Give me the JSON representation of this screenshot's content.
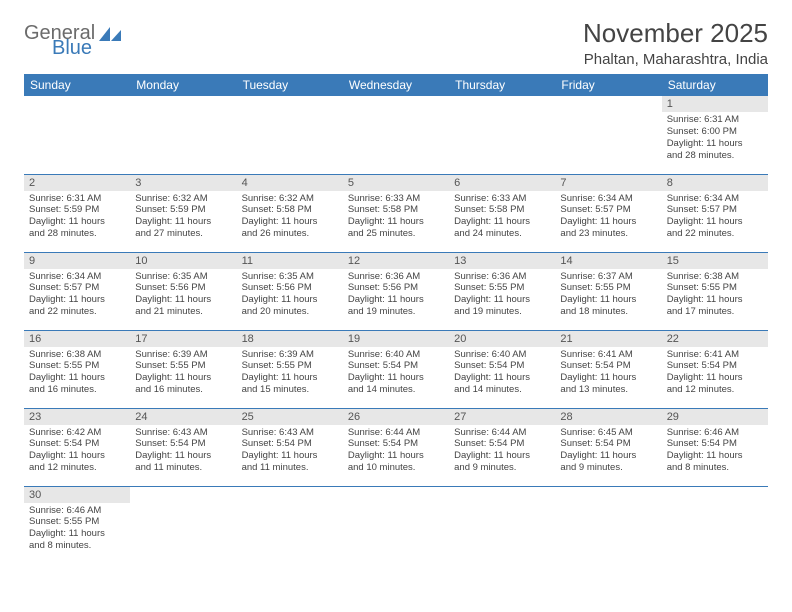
{
  "logo": {
    "general": "General",
    "blue": "Blue"
  },
  "header": {
    "month_title": "November 2025",
    "location": "Phaltan, Maharashtra, India"
  },
  "colors": {
    "header_bg": "#3a7ab8",
    "header_text": "#ffffff",
    "daynum_bg": "#e7e7e7",
    "border": "#3a7ab8",
    "body_text": "#444444"
  },
  "weekdays": [
    "Sunday",
    "Monday",
    "Tuesday",
    "Wednesday",
    "Thursday",
    "Friday",
    "Saturday"
  ],
  "weeks": [
    [
      null,
      null,
      null,
      null,
      null,
      null,
      {
        "d": "1",
        "sr": "Sunrise: 6:31 AM",
        "ss": "Sunset: 6:00 PM",
        "dl1": "Daylight: 11 hours",
        "dl2": "and 28 minutes."
      }
    ],
    [
      {
        "d": "2",
        "sr": "Sunrise: 6:31 AM",
        "ss": "Sunset: 5:59 PM",
        "dl1": "Daylight: 11 hours",
        "dl2": "and 28 minutes."
      },
      {
        "d": "3",
        "sr": "Sunrise: 6:32 AM",
        "ss": "Sunset: 5:59 PM",
        "dl1": "Daylight: 11 hours",
        "dl2": "and 27 minutes."
      },
      {
        "d": "4",
        "sr": "Sunrise: 6:32 AM",
        "ss": "Sunset: 5:58 PM",
        "dl1": "Daylight: 11 hours",
        "dl2": "and 26 minutes."
      },
      {
        "d": "5",
        "sr": "Sunrise: 6:33 AM",
        "ss": "Sunset: 5:58 PM",
        "dl1": "Daylight: 11 hours",
        "dl2": "and 25 minutes."
      },
      {
        "d": "6",
        "sr": "Sunrise: 6:33 AM",
        "ss": "Sunset: 5:58 PM",
        "dl1": "Daylight: 11 hours",
        "dl2": "and 24 minutes."
      },
      {
        "d": "7",
        "sr": "Sunrise: 6:34 AM",
        "ss": "Sunset: 5:57 PM",
        "dl1": "Daylight: 11 hours",
        "dl2": "and 23 minutes."
      },
      {
        "d": "8",
        "sr": "Sunrise: 6:34 AM",
        "ss": "Sunset: 5:57 PM",
        "dl1": "Daylight: 11 hours",
        "dl2": "and 22 minutes."
      }
    ],
    [
      {
        "d": "9",
        "sr": "Sunrise: 6:34 AM",
        "ss": "Sunset: 5:57 PM",
        "dl1": "Daylight: 11 hours",
        "dl2": "and 22 minutes."
      },
      {
        "d": "10",
        "sr": "Sunrise: 6:35 AM",
        "ss": "Sunset: 5:56 PM",
        "dl1": "Daylight: 11 hours",
        "dl2": "and 21 minutes."
      },
      {
        "d": "11",
        "sr": "Sunrise: 6:35 AM",
        "ss": "Sunset: 5:56 PM",
        "dl1": "Daylight: 11 hours",
        "dl2": "and 20 minutes."
      },
      {
        "d": "12",
        "sr": "Sunrise: 6:36 AM",
        "ss": "Sunset: 5:56 PM",
        "dl1": "Daylight: 11 hours",
        "dl2": "and 19 minutes."
      },
      {
        "d": "13",
        "sr": "Sunrise: 6:36 AM",
        "ss": "Sunset: 5:55 PM",
        "dl1": "Daylight: 11 hours",
        "dl2": "and 19 minutes."
      },
      {
        "d": "14",
        "sr": "Sunrise: 6:37 AM",
        "ss": "Sunset: 5:55 PM",
        "dl1": "Daylight: 11 hours",
        "dl2": "and 18 minutes."
      },
      {
        "d": "15",
        "sr": "Sunrise: 6:38 AM",
        "ss": "Sunset: 5:55 PM",
        "dl1": "Daylight: 11 hours",
        "dl2": "and 17 minutes."
      }
    ],
    [
      {
        "d": "16",
        "sr": "Sunrise: 6:38 AM",
        "ss": "Sunset: 5:55 PM",
        "dl1": "Daylight: 11 hours",
        "dl2": "and 16 minutes."
      },
      {
        "d": "17",
        "sr": "Sunrise: 6:39 AM",
        "ss": "Sunset: 5:55 PM",
        "dl1": "Daylight: 11 hours",
        "dl2": "and 16 minutes."
      },
      {
        "d": "18",
        "sr": "Sunrise: 6:39 AM",
        "ss": "Sunset: 5:55 PM",
        "dl1": "Daylight: 11 hours",
        "dl2": "and 15 minutes."
      },
      {
        "d": "19",
        "sr": "Sunrise: 6:40 AM",
        "ss": "Sunset: 5:54 PM",
        "dl1": "Daylight: 11 hours",
        "dl2": "and 14 minutes."
      },
      {
        "d": "20",
        "sr": "Sunrise: 6:40 AM",
        "ss": "Sunset: 5:54 PM",
        "dl1": "Daylight: 11 hours",
        "dl2": "and 14 minutes."
      },
      {
        "d": "21",
        "sr": "Sunrise: 6:41 AM",
        "ss": "Sunset: 5:54 PM",
        "dl1": "Daylight: 11 hours",
        "dl2": "and 13 minutes."
      },
      {
        "d": "22",
        "sr": "Sunrise: 6:41 AM",
        "ss": "Sunset: 5:54 PM",
        "dl1": "Daylight: 11 hours",
        "dl2": "and 12 minutes."
      }
    ],
    [
      {
        "d": "23",
        "sr": "Sunrise: 6:42 AM",
        "ss": "Sunset: 5:54 PM",
        "dl1": "Daylight: 11 hours",
        "dl2": "and 12 minutes."
      },
      {
        "d": "24",
        "sr": "Sunrise: 6:43 AM",
        "ss": "Sunset: 5:54 PM",
        "dl1": "Daylight: 11 hours",
        "dl2": "and 11 minutes."
      },
      {
        "d": "25",
        "sr": "Sunrise: 6:43 AM",
        "ss": "Sunset: 5:54 PM",
        "dl1": "Daylight: 11 hours",
        "dl2": "and 11 minutes."
      },
      {
        "d": "26",
        "sr": "Sunrise: 6:44 AM",
        "ss": "Sunset: 5:54 PM",
        "dl1": "Daylight: 11 hours",
        "dl2": "and 10 minutes."
      },
      {
        "d": "27",
        "sr": "Sunrise: 6:44 AM",
        "ss": "Sunset: 5:54 PM",
        "dl1": "Daylight: 11 hours",
        "dl2": "and 9 minutes."
      },
      {
        "d": "28",
        "sr": "Sunrise: 6:45 AM",
        "ss": "Sunset: 5:54 PM",
        "dl1": "Daylight: 11 hours",
        "dl2": "and 9 minutes."
      },
      {
        "d": "29",
        "sr": "Sunrise: 6:46 AM",
        "ss": "Sunset: 5:54 PM",
        "dl1": "Daylight: 11 hours",
        "dl2": "and 8 minutes."
      }
    ],
    [
      {
        "d": "30",
        "sr": "Sunrise: 6:46 AM",
        "ss": "Sunset: 5:55 PM",
        "dl1": "Daylight: 11 hours",
        "dl2": "and 8 minutes."
      },
      null,
      null,
      null,
      null,
      null,
      null
    ]
  ]
}
